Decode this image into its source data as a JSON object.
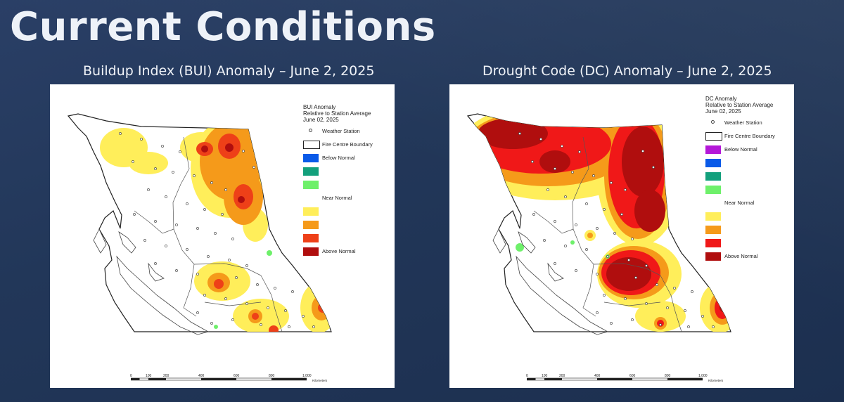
{
  "page": {
    "title": "Current Conditions"
  },
  "maps": [
    {
      "id": "bui",
      "subtitle": "Buildup Index (BUI) Anomaly – June 2, 2025",
      "legend": {
        "title_lines": [
          "BUI Anomaly",
          "Relative to Station Average",
          "June 02, 2025"
        ],
        "weather_station": "Weather Station",
        "fire_centre": "Fire Centre Boundary",
        "classes": [
          {
            "label": "Below Normal",
            "color": "#0a5ae8"
          },
          {
            "label": "",
            "color": "#13a07c"
          },
          {
            "label": "",
            "color": "#6ef06a"
          },
          {
            "label": "Near Normal",
            "color": "#ffffff"
          },
          {
            "label": "",
            "color": "#ffee5a"
          },
          {
            "label": "",
            "color": "#f59a1a"
          },
          {
            "label": "",
            "color": "#ee4018"
          },
          {
            "label": "Above Normal",
            "color": "#b00e0e"
          }
        ]
      },
      "scale": {
        "ticks": [
          "0",
          "100",
          "200",
          "400",
          "600",
          "800",
          "1,000"
        ],
        "units": "Kilometers"
      }
    },
    {
      "id": "dc",
      "subtitle": "Drought Code (DC) Anomaly – June 2, 2025",
      "legend": {
        "title_lines": [
          "DC Anomaly",
          "Relative to Station Average",
          "June 02, 2025"
        ],
        "weather_station": "Weather Station",
        "fire_centre": "Fire Centre Boundary",
        "classes": [
          {
            "label": "Below Normal",
            "color": "#b418d8"
          },
          {
            "label": "",
            "color": "#0a5ae8"
          },
          {
            "label": "",
            "color": "#13a07c"
          },
          {
            "label": "",
            "color": "#6ef06a"
          },
          {
            "label": "Near Normal",
            "color": "#ffffff"
          },
          {
            "label": "",
            "color": "#ffee5a"
          },
          {
            "label": "",
            "color": "#f59a1a"
          },
          {
            "label": "",
            "color": "#f01818"
          },
          {
            "label": "Above Normal",
            "color": "#b00e0e"
          }
        ]
      },
      "scale": {
        "ticks": [
          "0",
          "100",
          "200",
          "400",
          "600",
          "800",
          "1,000"
        ],
        "units": "Kilometers"
      }
    }
  ]
}
